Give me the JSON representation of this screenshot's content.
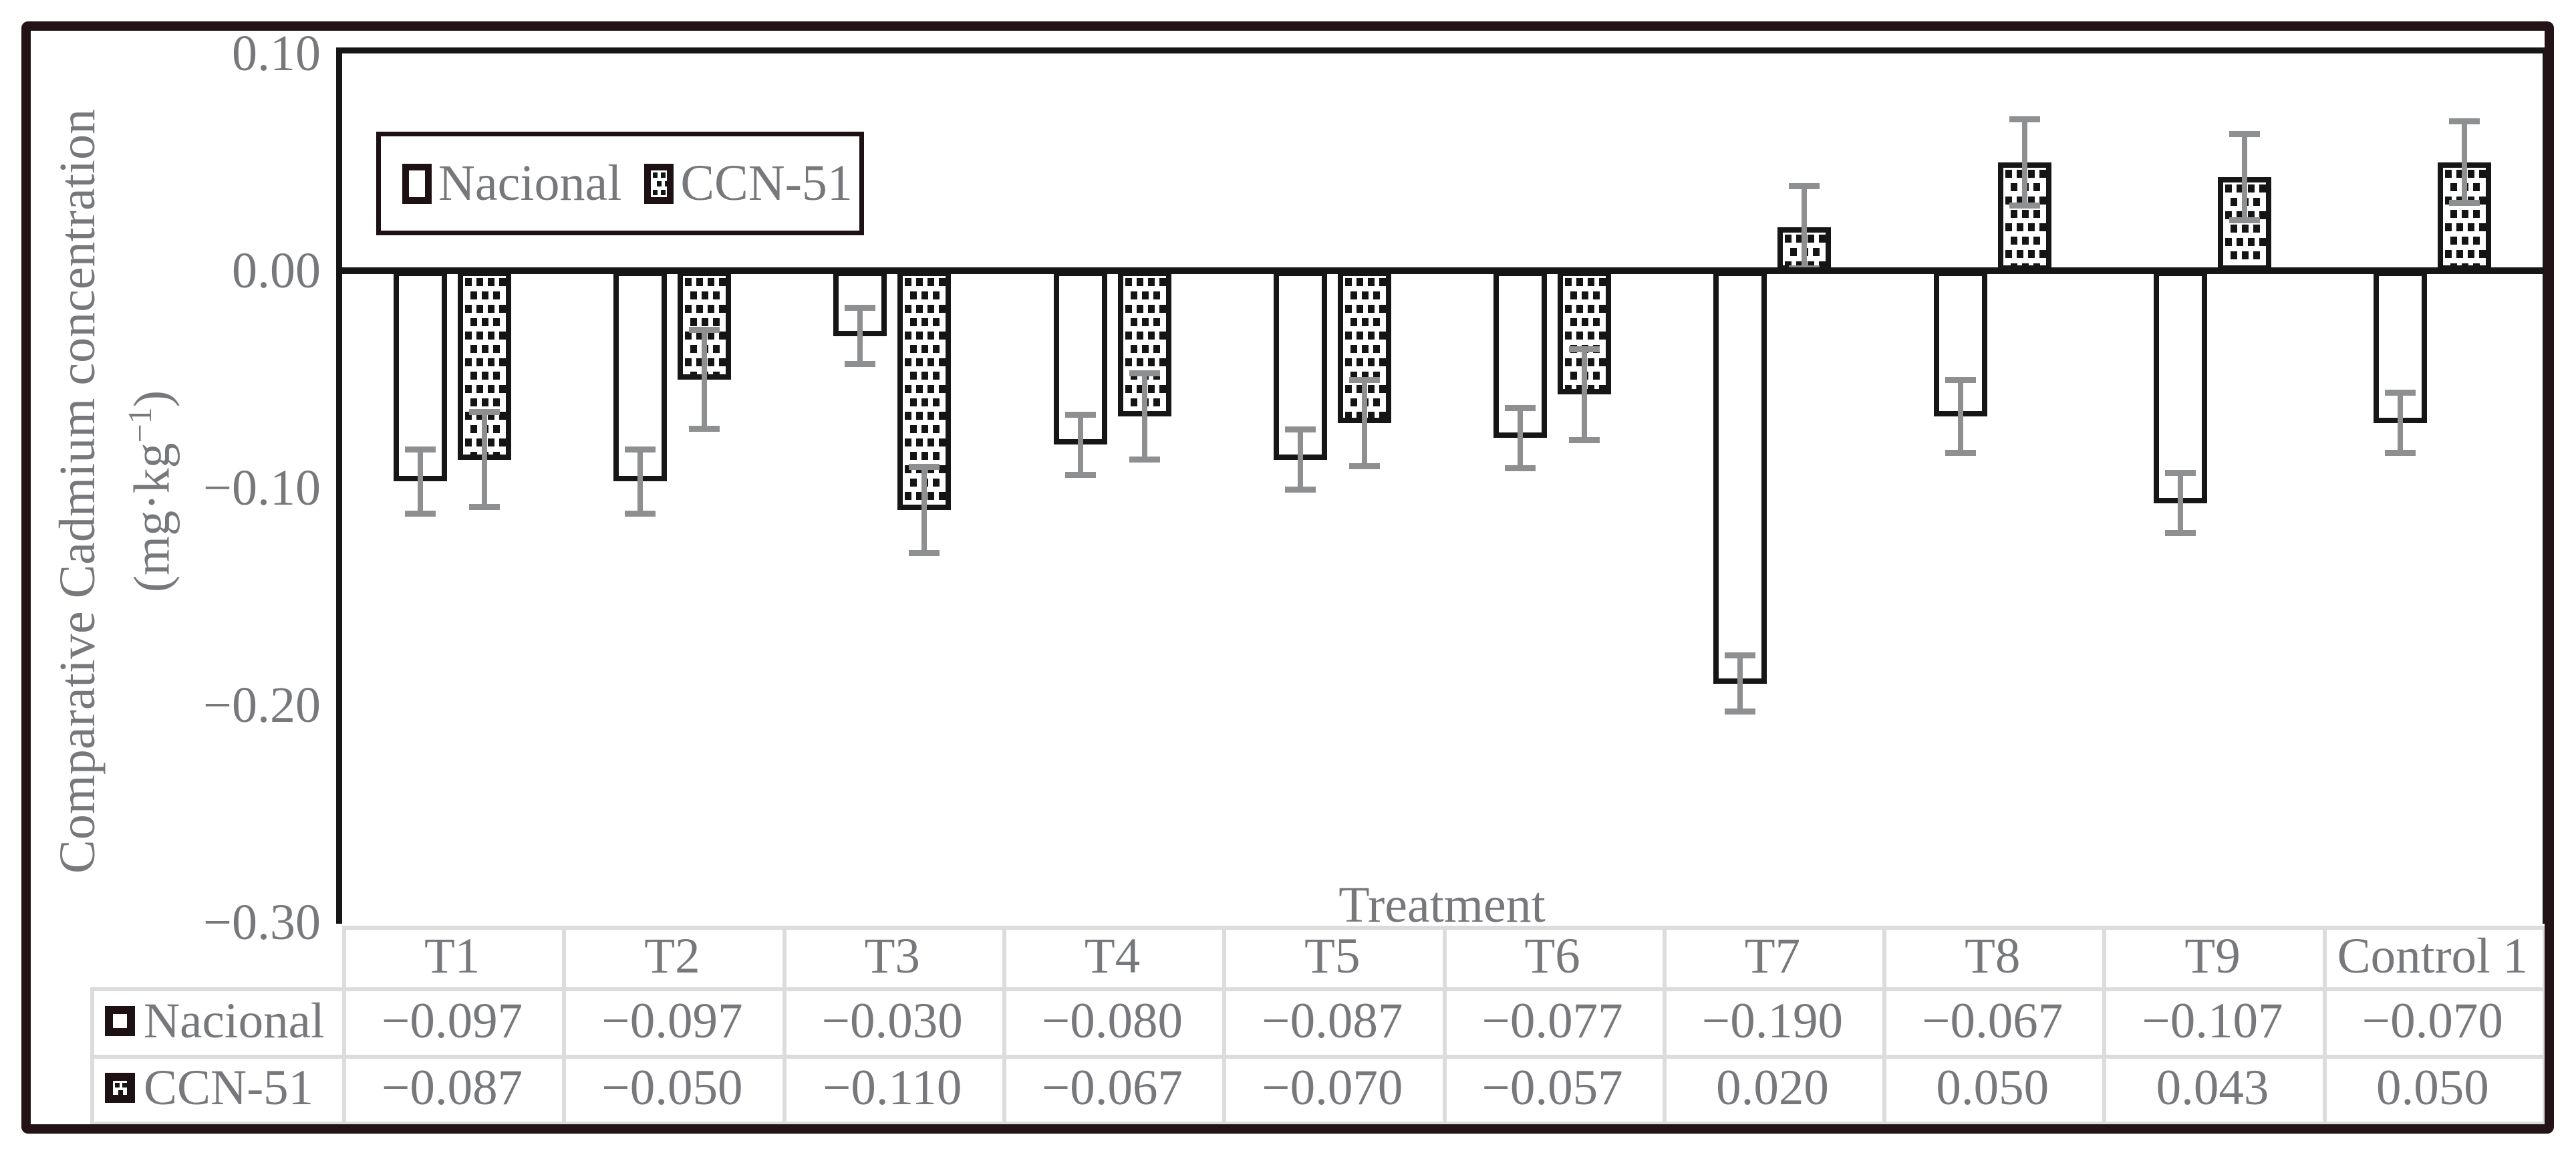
{
  "chart_data": {
    "type": "bar",
    "title": "",
    "xlabel": "Treatment",
    "ylabel_line1": "Comparative Cadmium concentration",
    "ylabel_unit_prefix": "(mg·kg",
    "ylabel_unit_sup": "−1",
    "ylabel_unit_suffix": ")",
    "categories": [
      "T1",
      "T2",
      "T3",
      "T4",
      "T5",
      "T6",
      "T7",
      "T8",
      "T9",
      "Control 1"
    ],
    "series": [
      {
        "name": "Nacional",
        "pattern": false,
        "values": [
          -0.097,
          -0.097,
          -0.03,
          -0.08,
          -0.087,
          -0.077,
          -0.19,
          -0.067,
          -0.107,
          -0.07
        ],
        "errors": [
          0.015,
          0.015,
          0.013,
          0.014,
          0.014,
          0.014,
          0.013,
          0.017,
          0.014,
          0.014
        ]
      },
      {
        "name": "CCN-51",
        "pattern": true,
        "values": [
          -0.087,
          -0.05,
          -0.11,
          -0.067,
          -0.07,
          -0.057,
          0.02,
          0.05,
          0.043,
          0.05
        ],
        "errors": [
          0.022,
          0.023,
          0.02,
          0.02,
          0.02,
          0.021,
          0.019,
          0.02,
          0.02,
          0.019
        ]
      }
    ],
    "ylim": [
      -0.3,
      0.1
    ],
    "yticks": [
      0.1,
      0.0,
      -0.1,
      -0.2,
      -0.3
    ],
    "ytick_labels": [
      "0.10",
      "0.00",
      "−0.10",
      "−0.20",
      "−0.30"
    ],
    "grid": false,
    "legend_position": "top-left"
  },
  "table": {
    "columns": [
      "T1",
      "T2",
      "T3",
      "T4",
      "T5",
      "T6",
      "T7",
      "T8",
      "T9",
      "Control 1"
    ],
    "rows": [
      {
        "label": "Nacional",
        "values": [
          "−0.097",
          "−0.097",
          "−0.030",
          "−0.080",
          "−0.087",
          "−0.077",
          "−0.190",
          "−0.067",
          "−0.107",
          "−0.070"
        ]
      },
      {
        "label": "CCN-51",
        "values": [
          "−0.087",
          "−0.050",
          "−0.110",
          "−0.067",
          "−0.070",
          "−0.057",
          "0.020",
          "0.050",
          "0.043",
          "0.050"
        ]
      }
    ]
  },
  "colors": {
    "text": "#76787b",
    "axis": "#161616",
    "error_bar": "#8d8f91",
    "frame": "#231316",
    "table_border": "#dcdcdc",
    "bar_fill": "#ffffff",
    "pattern_dot": "#141414"
  }
}
